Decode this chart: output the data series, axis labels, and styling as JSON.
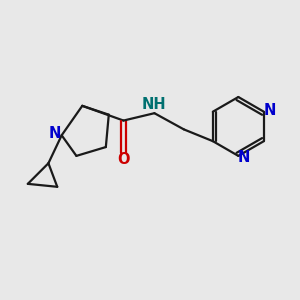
{
  "bg_color": "#e8e8e8",
  "bond_color": "#1a1a1a",
  "N_color": "#0000cc",
  "O_color": "#cc0000",
  "NH_color": "#007070",
  "line_width": 1.6,
  "font_size": 10.5,
  "fig_size": [
    3.0,
    3.0
  ],
  "dpi": 100,
  "xlim": [
    0,
    10
  ],
  "ylim": [
    0,
    10
  ]
}
